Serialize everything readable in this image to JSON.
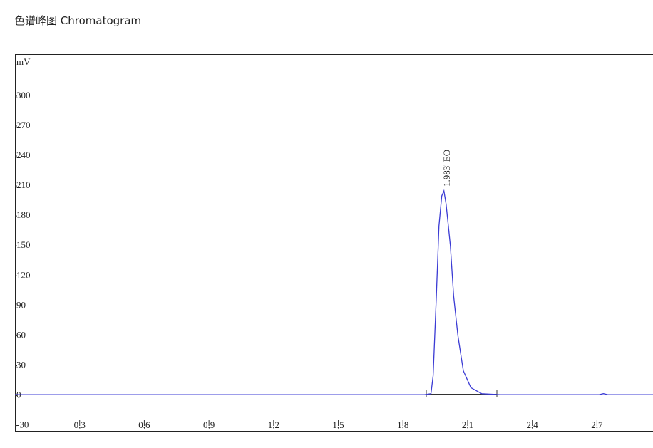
{
  "chart_data": {
    "type": "line",
    "title": "色谱峰图 Chromatogram",
    "y_label": "mV",
    "annotation": "1.983' EO",
    "x": [
      0,
      1.9,
      1.93,
      1.94,
      1.955,
      1.967,
      1.98,
      1.99,
      2.0,
      2.02,
      2.035,
      2.055,
      2.08,
      2.115,
      2.165,
      2.25,
      2.71,
      2.73,
      2.75,
      2.96
    ],
    "series": [
      {
        "name": "mV",
        "color": "#3b3bd4",
        "values": [
          1,
          1,
          2,
          20,
          100,
          170,
          200,
          205,
          192,
          150,
          100,
          60,
          25,
          8,
          2,
          1,
          1,
          2,
          1,
          1
        ]
      }
    ],
    "xlim": [
      0,
      2.96
    ],
    "ylim": [
      -36,
      342
    ],
    "xticks": [
      {
        "value": 0.3,
        "label": "0,3"
      },
      {
        "value": 0.6,
        "label": "0,6"
      },
      {
        "value": 0.9,
        "label": "0,9"
      },
      {
        "value": 1.2,
        "label": "1,2"
      },
      {
        "value": 1.5,
        "label": "1,5"
      },
      {
        "value": 1.8,
        "label": "1,8"
      },
      {
        "value": 2.1,
        "label": "2,1"
      },
      {
        "value": 2.4,
        "label": "2,4"
      },
      {
        "value": 2.7,
        "label": "2,7"
      }
    ],
    "yticks": [
      -30,
      0,
      30,
      60,
      90,
      120,
      150,
      180,
      210,
      240,
      270,
      300
    ],
    "grid": false
  }
}
